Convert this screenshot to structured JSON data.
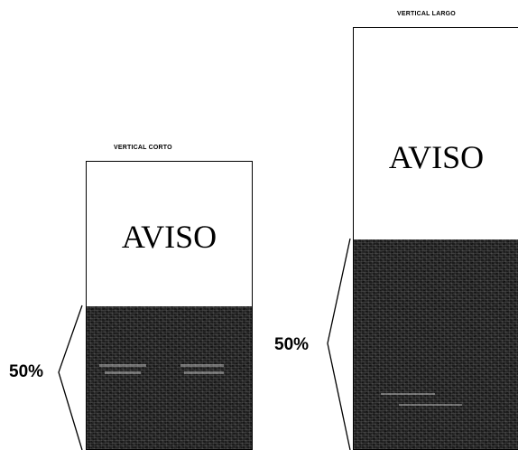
{
  "short": {
    "title": "VERTICAL CORTO",
    "label": "AVISO",
    "percent": "50%",
    "fill_fraction": 0.5
  },
  "long": {
    "title": "VERTICAL LARGO",
    "label": "AVISO",
    "percent": "50%",
    "fill_fraction": 0.5
  }
}
